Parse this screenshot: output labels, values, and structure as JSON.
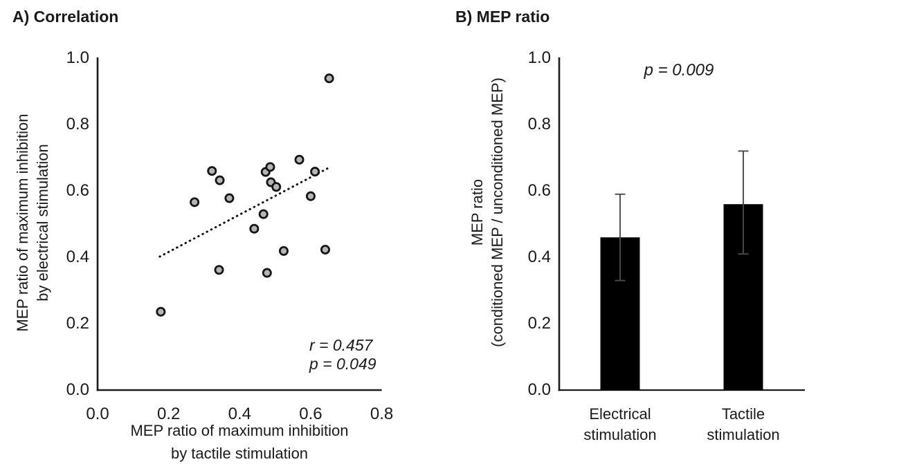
{
  "figure": {
    "background": "#ffffff",
    "text_color": "#1a1a1a"
  },
  "chart_data": [
    {
      "type": "scatter",
      "title": "A) Correlation",
      "xlabel_lines": [
        "MEP ratio of maximum inhibition",
        "by tactile stimulation"
      ],
      "ylabel_lines": [
        "MEP ratio of maximum inhibition",
        "by electrical stimulation"
      ],
      "xlim": [
        0.0,
        0.8
      ],
      "ylim": [
        0.0,
        1.0
      ],
      "x_ticks": [
        {
          "label": "0.0",
          "value": 0.0
        },
        {
          "label": "0.2",
          "value": 0.2
        },
        {
          "label": "0.4",
          "value": 0.4
        },
        {
          "label": "0.6",
          "value": 0.6
        },
        {
          "label": "0.8",
          "value": 0.8
        }
      ],
      "y_ticks": [
        {
          "label": "0.0",
          "value": 0.0
        },
        {
          "label": "0.2",
          "value": 0.2
        },
        {
          "label": "0.4",
          "value": 0.4
        },
        {
          "label": "0.6",
          "value": 0.6
        },
        {
          "label": "0.8",
          "value": 0.8
        },
        {
          "label": "1.0",
          "value": 1.0
        }
      ],
      "points": [
        [
          0.652,
          0.939
        ],
        [
          0.322,
          0.66
        ],
        [
          0.344,
          0.632
        ],
        [
          0.273,
          0.566
        ],
        [
          0.371,
          0.578
        ],
        [
          0.473,
          0.657
        ],
        [
          0.486,
          0.672
        ],
        [
          0.488,
          0.626
        ],
        [
          0.503,
          0.612
        ],
        [
          0.568,
          0.694
        ],
        [
          0.612,
          0.658
        ],
        [
          0.6,
          0.584
        ],
        [
          0.467,
          0.53
        ],
        [
          0.441,
          0.486
        ],
        [
          0.524,
          0.419
        ],
        [
          0.641,
          0.423
        ],
        [
          0.342,
          0.362
        ],
        [
          0.477,
          0.353
        ],
        [
          0.178,
          0.236
        ]
      ],
      "trend_line": {
        "x1": 0.175,
        "y1": 0.402,
        "x2": 0.648,
        "y2": 0.668,
        "style": "dotted"
      },
      "annotations": [
        "r = 0.457",
        "p = 0.049"
      ],
      "marker": {
        "fill": "#b5b5b5",
        "stroke": "#151515"
      },
      "axis_color": "#1a1a1a",
      "grid": false
    },
    {
      "type": "bar",
      "title": "B) MEP ratio",
      "ylabel_lines": [
        "MEP ratio",
        "(conditioned MEP / unconditioned MEP)"
      ],
      "categories": [
        {
          "lines": [
            "Electrical",
            "stimulation"
          ]
        },
        {
          "lines": [
            "Tactile",
            "stimulation"
          ]
        }
      ],
      "values": [
        0.46,
        0.56
      ],
      "error_low": [
        0.33,
        0.41
      ],
      "error_high": [
        0.59,
        0.72
      ],
      "ylim": [
        0.0,
        1.0
      ],
      "y_ticks": [
        {
          "label": "0.0",
          "value": 0.0
        },
        {
          "label": "0.2",
          "value": 0.2
        },
        {
          "label": "0.4",
          "value": 0.4
        },
        {
          "label": "0.6",
          "value": 0.6
        },
        {
          "label": "0.8",
          "value": 0.8
        },
        {
          "label": "1.0",
          "value": 1.0
        }
      ],
      "annotation": "p = 0.009",
      "bar_color": "#000000",
      "error_color": "#4a4a4a",
      "axis_color": "#1a1a1a",
      "grid": false
    }
  ]
}
